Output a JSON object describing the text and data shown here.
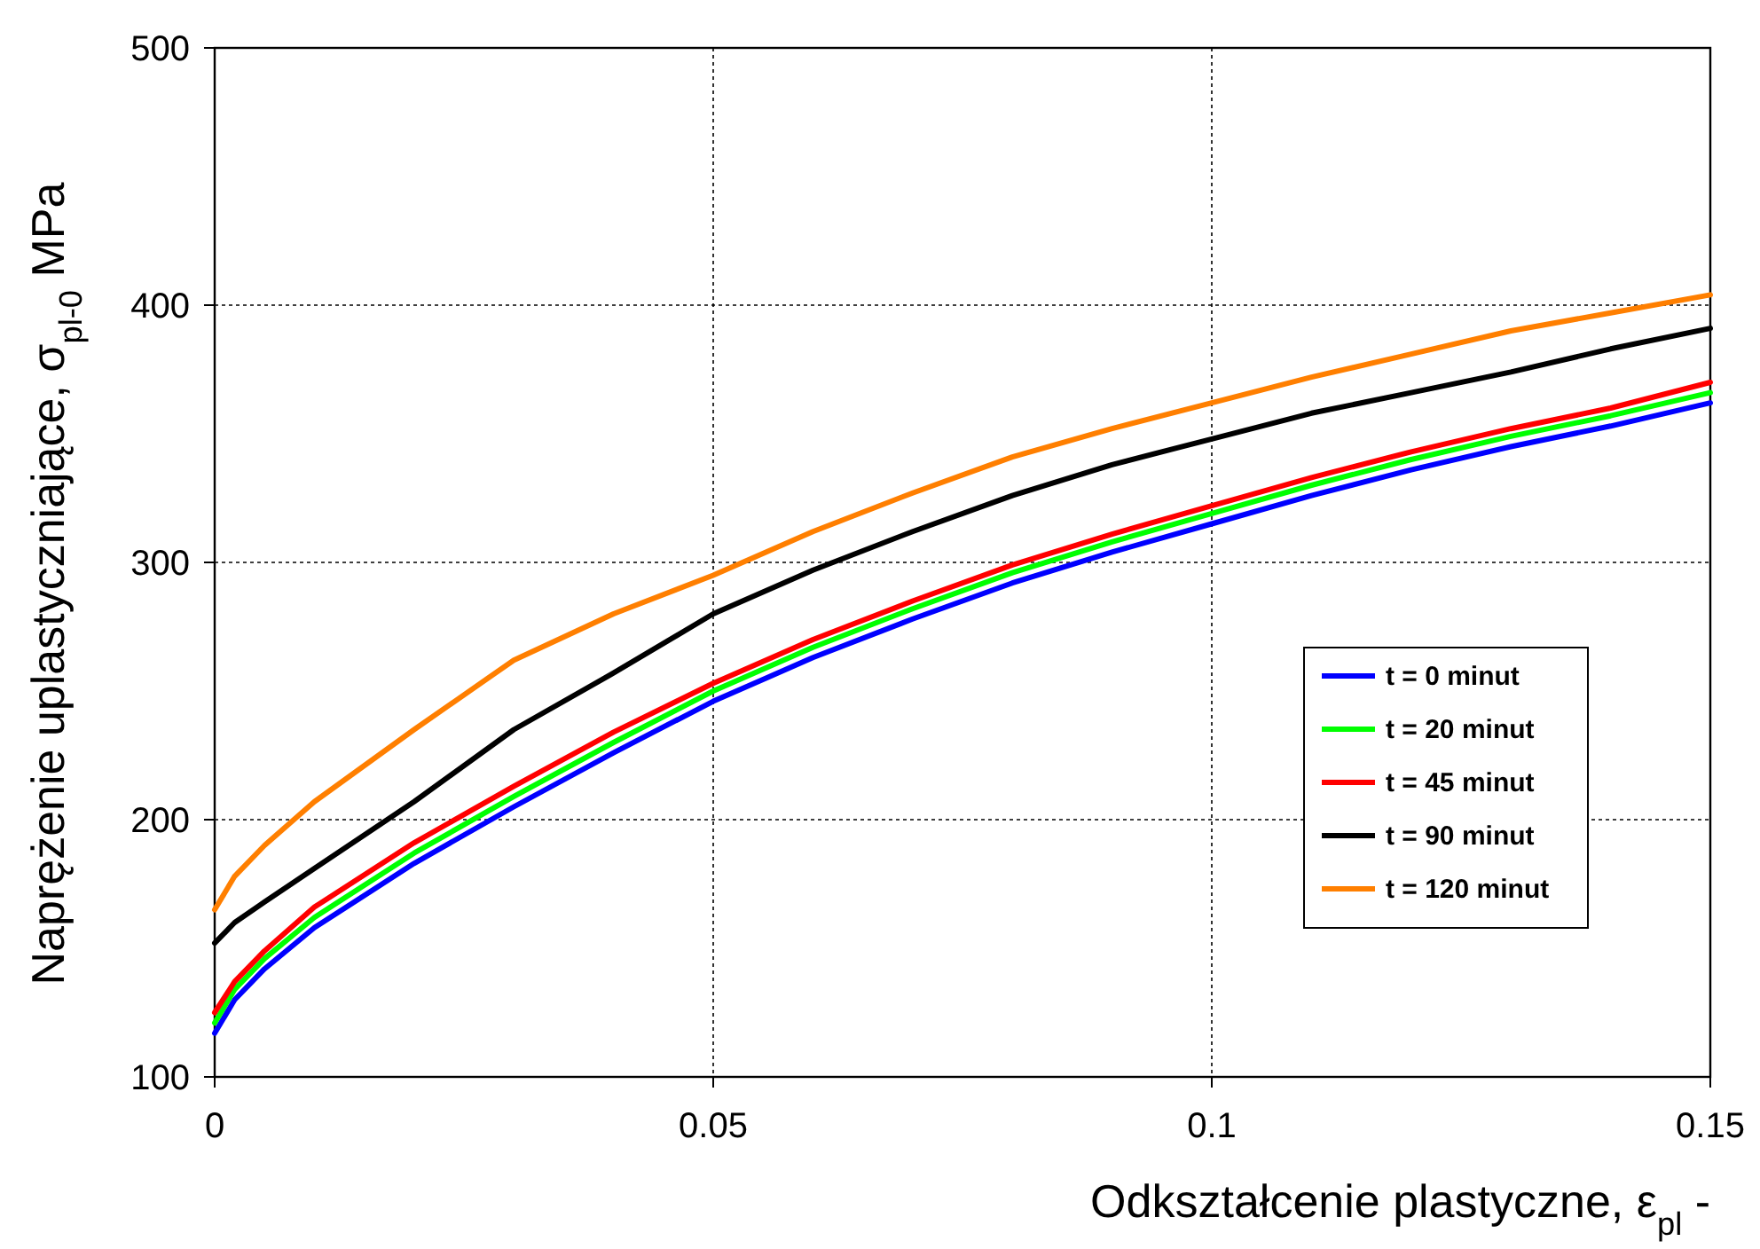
{
  "chart_data": {
    "type": "line",
    "xlabel": "Odkształcenie plastyczne, ε$_{pl}$ -",
    "ylabel": "Naprężenie uplastyczniające, σ$_{pl-0}$  MPa",
    "x": [
      0,
      0.002,
      0.005,
      0.01,
      0.02,
      0.03,
      0.04,
      0.05,
      0.06,
      0.07,
      0.08,
      0.09,
      0.1,
      0.11,
      0.12,
      0.13,
      0.14,
      0.15
    ],
    "series": [
      {
        "name": "t = 0 minut",
        "color": "#0000ff",
        "values": [
          117,
          130,
          142,
          158,
          183,
          205,
          226,
          246,
          263,
          278,
          292,
          304,
          315,
          326,
          336,
          345,
          353,
          362
        ]
      },
      {
        "name": "t = 20 minut",
        "color": "#00ff00",
        "values": [
          121,
          134,
          146,
          162,
          187,
          209,
          230,
          250,
          267,
          282,
          296,
          308,
          319,
          330,
          340,
          349,
          357,
          366
        ]
      },
      {
        "name": "t = 45 minut",
        "color": "#ff0000",
        "values": [
          125,
          137,
          149,
          166,
          191,
          213,
          234,
          253,
          270,
          285,
          299,
          311,
          322,
          333,
          343,
          352,
          360,
          370
        ]
      },
      {
        "name": "t = 90 minut",
        "color": "#000000",
        "values": [
          152,
          160,
          168,
          181,
          207,
          235,
          257,
          280,
          297,
          312,
          326,
          338,
          348,
          358,
          366,
          374,
          383,
          391
        ]
      },
      {
        "name": "t = 120 minut",
        "color": "#ff7f00",
        "values": [
          165,
          178,
          190,
          207,
          235,
          262,
          280,
          295,
          312,
          327,
          341,
          352,
          362,
          372,
          381,
          390,
          397,
          404
        ]
      }
    ],
    "xlim": [
      0,
      0.15
    ],
    "xticks": [
      0,
      0.05,
      0.1,
      0.15
    ],
    "ylim": [
      100,
      500
    ],
    "yticks": [
      100,
      200,
      300,
      400,
      500
    ],
    "grid": true,
    "legend": "right",
    "line_style": "solid"
  }
}
